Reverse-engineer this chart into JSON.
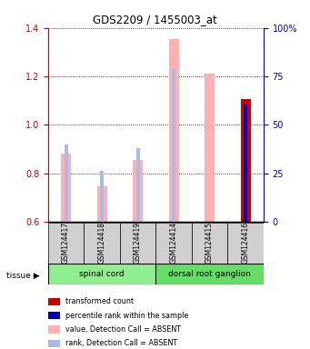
{
  "title": "GDS2209 / 1455003_at",
  "samples": [
    "GSM124417",
    "GSM124418",
    "GSM124419",
    "GSM124414",
    "GSM124415",
    "GSM124416"
  ],
  "tissue_labels": [
    "spinal cord",
    "dorsal root ganglion"
  ],
  "value_absent": [
    0.88,
    0.745,
    0.855,
    1.355,
    1.21,
    null
  ],
  "rank_absent": [
    0.92,
    0.81,
    0.905,
    1.235,
    null,
    null
  ],
  "value_present": [
    null,
    null,
    null,
    null,
    null,
    1.105
  ],
  "rank_present": [
    null,
    null,
    null,
    null,
    null,
    1.085
  ],
  "ylim_left": [
    0.6,
    1.4
  ],
  "ylim_right": [
    0,
    100
  ],
  "yticks_left": [
    0.6,
    0.8,
    1.0,
    1.2,
    1.4
  ],
  "yticks_right": [
    0,
    25,
    50,
    75,
    100
  ],
  "ytick_labels_right": [
    "0",
    "25",
    "50",
    "75",
    "100%"
  ],
  "color_value_absent": "#FFB0B0",
  "color_rank_absent": "#AABAE8",
  "color_value_present": "#CC0000",
  "color_rank_present": "#0000BB",
  "color_tissue_spinal": "#90EE90",
  "color_tissue_dorsal": "#66DD66",
  "ylabel_left_color": "#CC0000",
  "ylabel_right_color": "#0000BB",
  "tissue_arrow_label": "tissue",
  "legend_items": [
    {
      "color": "#CC0000",
      "label": "transformed count"
    },
    {
      "color": "#0000BB",
      "label": "percentile rank within the sample"
    },
    {
      "color": "#FFB0B0",
      "label": "value, Detection Call = ABSENT"
    },
    {
      "color": "#AABAE8",
      "label": "rank, Detection Call = ABSENT"
    }
  ]
}
